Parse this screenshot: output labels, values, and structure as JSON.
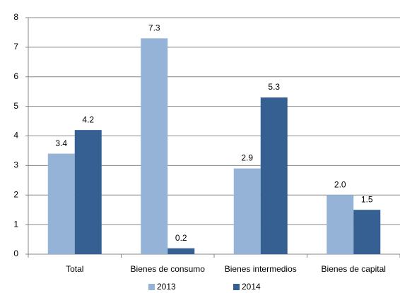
{
  "chart_data": {
    "type": "bar",
    "categories": [
      "Total",
      "Bienes de consumo",
      "Bienes intermedios",
      "Bienes de capital"
    ],
    "series": [
      {
        "name": "2013",
        "color": "#95b3d7",
        "values": [
          3.4,
          7.3,
          2.9,
          2.0
        ],
        "value_labels": [
          "3.4",
          "7.3",
          "2.9",
          "2.0"
        ]
      },
      {
        "name": "2014",
        "color": "#376092",
        "values": [
          4.2,
          0.2,
          5.3,
          1.5
        ],
        "value_labels": [
          "4.2",
          "0.2",
          "5.3",
          "1.5"
        ]
      }
    ],
    "ylim": [
      0,
      8
    ],
    "yticks": [
      0,
      1,
      2,
      3,
      4,
      5,
      6,
      7,
      8
    ],
    "grid": true,
    "legend": "bottom"
  }
}
